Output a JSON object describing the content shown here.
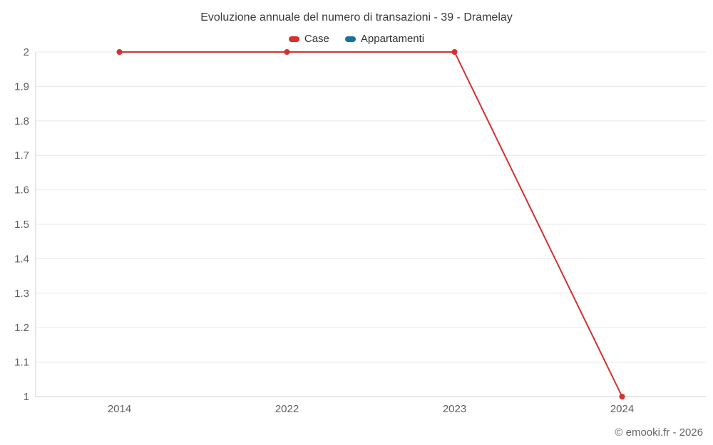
{
  "chart_data": {
    "type": "line",
    "title": "Evoluzione annuale del numero di transazioni - 39 - Dramelay",
    "categories": [
      "2014",
      "2022",
      "2023",
      "2024"
    ],
    "series": [
      {
        "name": "Case",
        "color": "#d3302f",
        "values": [
          2,
          2,
          2,
          1
        ]
      },
      {
        "name": "Appartamenti",
        "color": "#1d6fa0",
        "values": []
      }
    ],
    "xlabel": "",
    "ylabel": "",
    "ylim": [
      1,
      2
    ],
    "ytick_step": 0.1,
    "grid": true,
    "legend_position": "top",
    "grid_color": "#e8e8e8",
    "axis_color": "#cfcfcf"
  },
  "footer": {
    "credit": "© emooki.fr - 2026"
  }
}
